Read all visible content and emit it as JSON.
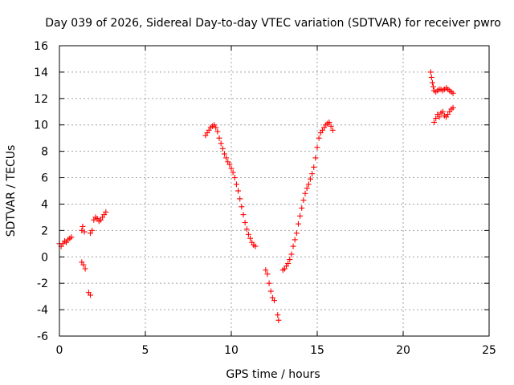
{
  "chart_data": {
    "type": "scatter",
    "title": "Day 039 of 2026, Sidereal Day-to-day VTEC variation (SDTVAR) for receiver pwro",
    "xlabel": "GPS time / hours",
    "ylabel": "SDTVAR / TECUs",
    "xlim": [
      0,
      25
    ],
    "ylim": [
      -6,
      16
    ],
    "xticks": [
      "0",
      "5",
      "10",
      "15",
      "20",
      "25"
    ],
    "yticks": [
      "16",
      "14",
      "12",
      "10",
      "8",
      "6",
      "4",
      "2",
      "0",
      "-2",
      "-4",
      "-6"
    ],
    "grid": true,
    "marker": "plus",
    "series": [
      {
        "name": "SDTVAR",
        "color": "#ff0000",
        "points": [
          [
            0.0,
            1.0
          ],
          [
            0.1,
            0.8
          ],
          [
            0.2,
            1.0
          ],
          [
            0.3,
            1.2
          ],
          [
            0.4,
            1.1
          ],
          [
            0.5,
            1.3
          ],
          [
            0.6,
            1.4
          ],
          [
            0.7,
            1.5
          ],
          [
            1.3,
            -0.4
          ],
          [
            1.4,
            -0.6
          ],
          [
            1.5,
            -0.9
          ],
          [
            1.3,
            2.0
          ],
          [
            1.35,
            2.3
          ],
          [
            1.45,
            1.9
          ],
          [
            1.7,
            -2.7
          ],
          [
            1.8,
            -2.9
          ],
          [
            1.8,
            1.8
          ],
          [
            1.9,
            2.0
          ],
          [
            2.0,
            2.8
          ],
          [
            2.1,
            3.0
          ],
          [
            2.2,
            2.9
          ],
          [
            2.3,
            2.7
          ],
          [
            2.4,
            2.8
          ],
          [
            2.5,
            3.0
          ],
          [
            2.6,
            3.2
          ],
          [
            2.7,
            3.4
          ],
          [
            8.5,
            9.2
          ],
          [
            8.6,
            9.4
          ],
          [
            8.7,
            9.6
          ],
          [
            8.8,
            9.8
          ],
          [
            8.9,
            9.9
          ],
          [
            9.0,
            10.0
          ],
          [
            9.1,
            9.8
          ],
          [
            9.2,
            9.5
          ],
          [
            9.3,
            9.0
          ],
          [
            9.4,
            8.6
          ],
          [
            9.5,
            8.2
          ],
          [
            9.6,
            7.8
          ],
          [
            9.7,
            7.5
          ],
          [
            9.8,
            7.2
          ],
          [
            9.9,
            7.0
          ],
          [
            10.0,
            6.7
          ],
          [
            10.1,
            6.4
          ],
          [
            10.2,
            6.0
          ],
          [
            10.3,
            5.5
          ],
          [
            10.4,
            5.0
          ],
          [
            10.5,
            4.4
          ],
          [
            10.6,
            3.8
          ],
          [
            10.7,
            3.2
          ],
          [
            10.8,
            2.6
          ],
          [
            10.9,
            2.1
          ],
          [
            11.0,
            1.7
          ],
          [
            11.1,
            1.4
          ],
          [
            11.2,
            1.1
          ],
          [
            11.3,
            0.9
          ],
          [
            11.4,
            0.8
          ],
          [
            12.0,
            -1.0
          ],
          [
            12.1,
            -1.3
          ],
          [
            12.2,
            -2.0
          ],
          [
            12.3,
            -2.6
          ],
          [
            12.4,
            -3.1
          ],
          [
            12.5,
            -3.3
          ],
          [
            12.7,
            -4.4
          ],
          [
            12.75,
            -4.8
          ],
          [
            13.0,
            -1.0
          ],
          [
            13.1,
            -0.9
          ],
          [
            13.2,
            -0.7
          ],
          [
            13.3,
            -0.5
          ],
          [
            13.4,
            -0.2
          ],
          [
            13.5,
            0.2
          ],
          [
            13.6,
            0.8
          ],
          [
            13.7,
            1.3
          ],
          [
            13.8,
            1.8
          ],
          [
            13.9,
            2.5
          ],
          [
            14.0,
            3.1
          ],
          [
            14.1,
            3.7
          ],
          [
            14.2,
            4.3
          ],
          [
            14.3,
            4.8
          ],
          [
            14.4,
            5.2
          ],
          [
            14.5,
            5.5
          ],
          [
            14.6,
            5.9
          ],
          [
            14.7,
            6.3
          ],
          [
            14.8,
            6.8
          ],
          [
            14.9,
            7.5
          ],
          [
            15.0,
            8.3
          ],
          [
            15.1,
            9.0
          ],
          [
            15.2,
            9.4
          ],
          [
            15.3,
            9.6
          ],
          [
            15.4,
            9.8
          ],
          [
            15.5,
            10.0
          ],
          [
            15.6,
            10.1
          ],
          [
            15.7,
            10.2
          ],
          [
            15.8,
            9.9
          ],
          [
            15.9,
            9.6
          ],
          [
            21.6,
            14.0
          ],
          [
            21.65,
            13.6
          ],
          [
            21.7,
            13.2
          ],
          [
            21.75,
            12.9
          ],
          [
            21.8,
            12.6
          ],
          [
            21.9,
            12.5
          ],
          [
            22.0,
            12.6
          ],
          [
            22.1,
            12.7
          ],
          [
            22.2,
            12.7
          ],
          [
            22.3,
            12.6
          ],
          [
            22.4,
            12.7
          ],
          [
            22.5,
            12.8
          ],
          [
            22.6,
            12.7
          ],
          [
            22.7,
            12.6
          ],
          [
            22.8,
            12.5
          ],
          [
            22.9,
            12.4
          ],
          [
            21.8,
            10.2
          ],
          [
            21.9,
            10.5
          ],
          [
            22.0,
            10.8
          ],
          [
            22.1,
            10.6
          ],
          [
            22.2,
            10.9
          ],
          [
            22.3,
            11.0
          ],
          [
            22.4,
            10.7
          ],
          [
            22.5,
            10.6
          ],
          [
            22.6,
            10.8
          ],
          [
            22.7,
            11.0
          ],
          [
            22.8,
            11.2
          ],
          [
            22.9,
            11.3
          ]
        ]
      }
    ]
  }
}
